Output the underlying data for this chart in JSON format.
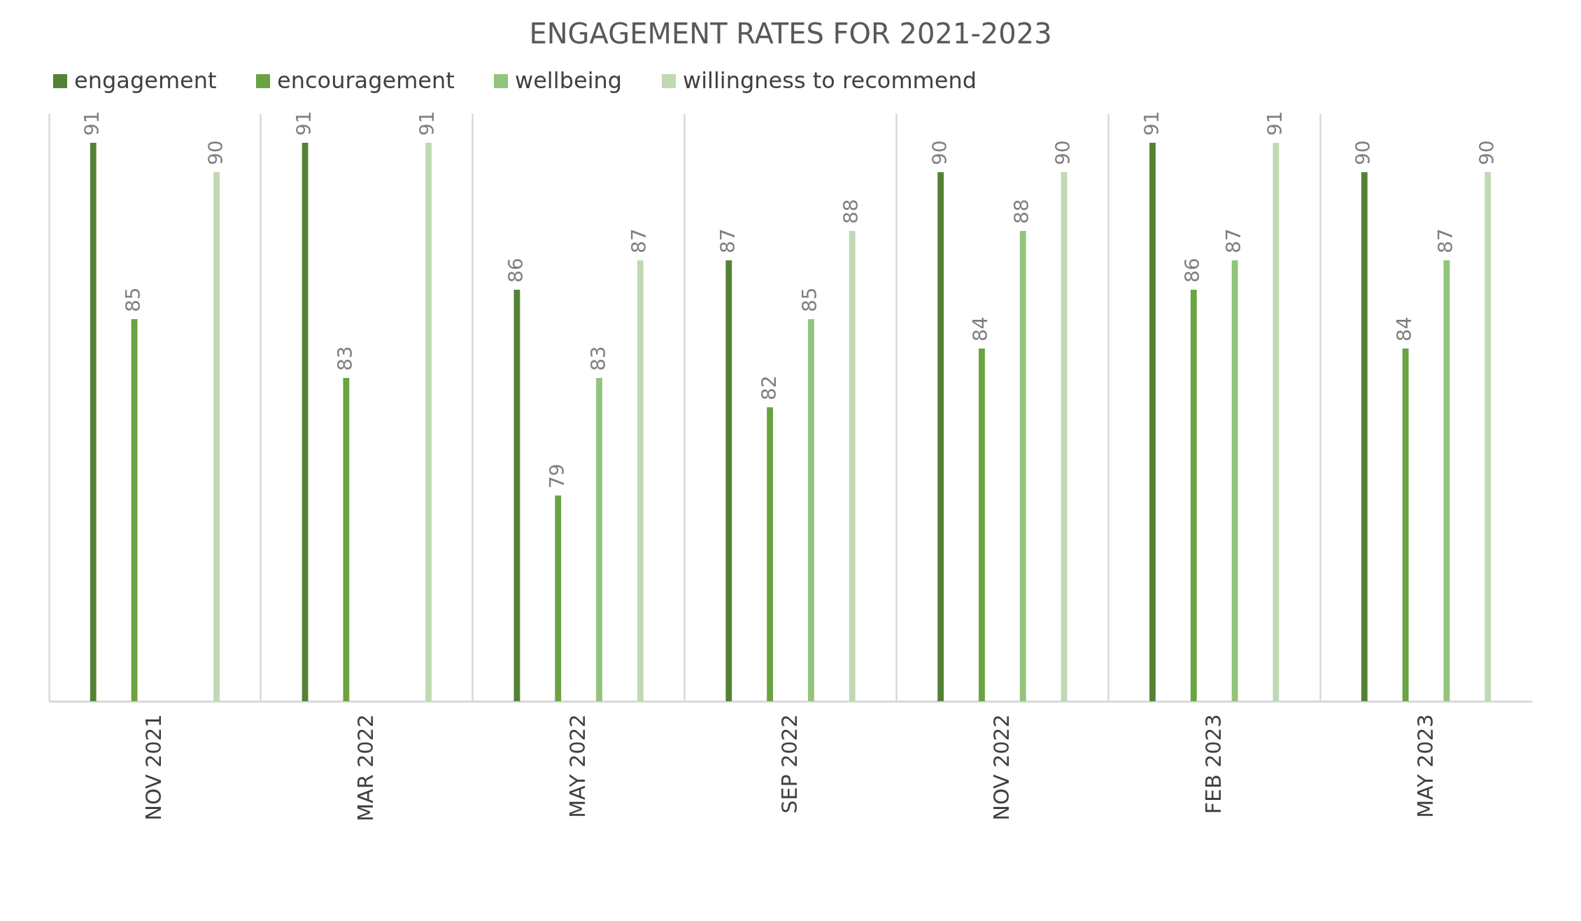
{
  "chart_data": {
    "type": "bar",
    "title": "ENGAGEMENT RATES FOR 2021-2023",
    "categories": [
      "NOV 2021",
      "MAR 2022",
      "MAY 2022",
      "SEP 2022",
      "NOV 2022",
      "FEB 2023",
      "MAY 2023"
    ],
    "series": [
      {
        "name": "engagement",
        "color": "#548235",
        "values": [
          91,
          91,
          86,
          87,
          90,
          91,
          90
        ]
      },
      {
        "name": "encouragement",
        "color": "#6aa341",
        "values": [
          85,
          83,
          79,
          82,
          84,
          86,
          84
        ]
      },
      {
        "name": "wellbeing",
        "color": "#93c47d",
        "values": [
          null,
          null,
          83,
          85,
          88,
          87,
          87
        ]
      },
      {
        "name": "willingness to recommend",
        "color": "#c0d9b3",
        "values": [
          90,
          91,
          87,
          88,
          90,
          91,
          90
        ]
      }
    ],
    "ylim": [
      72,
      92
    ],
    "data_labels": true,
    "legend": "top",
    "grid": "x",
    "tick_labels": "x"
  }
}
